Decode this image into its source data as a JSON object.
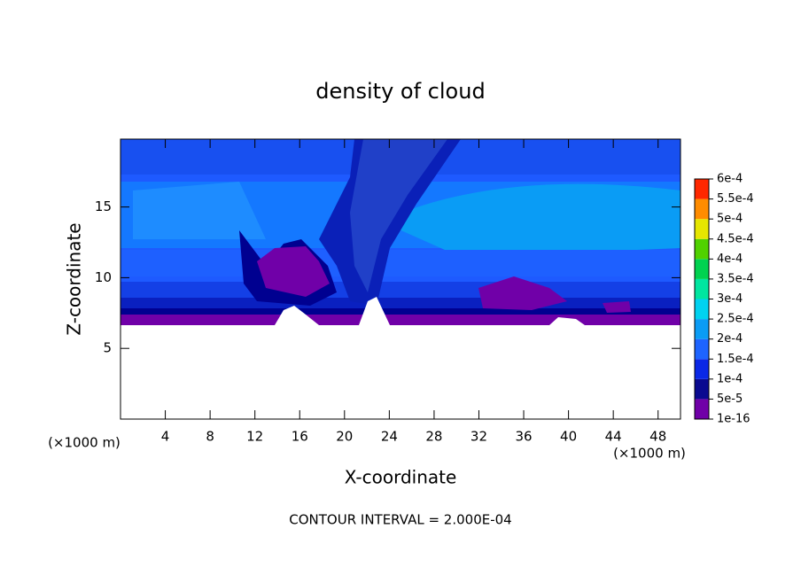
{
  "chart_data": {
    "type": "contour",
    "title": "density of cloud",
    "xlabel": "X-coordinate",
    "ylabel": "Z-coordinate",
    "xunit": "(×1000 m)",
    "yunit": "(×1000 m)",
    "annotation": "CONTOUR INTERVAL = 2.000E-04",
    "xlim": [
      0,
      50
    ],
    "ylim": [
      0,
      19.8
    ],
    "xticks": [
      4,
      8,
      12,
      16,
      20,
      24,
      28,
      32,
      36,
      40,
      44,
      48
    ],
    "yticks": [
      5,
      10,
      15
    ],
    "colorbar": {
      "levels": [
        {
          "value": 1e-16,
          "label": "1e-16"
        },
        {
          "value": 5e-05,
          "label": "5e-5"
        },
        {
          "value": 0.0001,
          "label": "1e-4"
        },
        {
          "value": 0.00015,
          "label": "1.5e-4"
        },
        {
          "value": 0.0002,
          "label": "2e-4"
        },
        {
          "value": 0.00025,
          "label": "2.5e-4"
        },
        {
          "value": 0.0003,
          "label": "3e-4"
        },
        {
          "value": 0.00035,
          "label": "3.5e-4"
        },
        {
          "value": 0.0004,
          "label": "4e-4"
        },
        {
          "value": 0.00045,
          "label": "4.5e-4"
        },
        {
          "value": 0.0005,
          "label": "5e-4"
        },
        {
          "value": 0.00055,
          "label": "5.5e-4"
        },
        {
          "value": 0.0006,
          "label": "6e-4"
        }
      ],
      "colors": [
        "#7000a8",
        "#0a0a90",
        "#0a28e6",
        "#1e64ff",
        "#0a9cf5",
        "#00d2f0",
        "#00e6a0",
        "#00d250",
        "#50d200",
        "#e6e600",
        "#ff8c00",
        "#ff2800"
      ]
    }
  }
}
